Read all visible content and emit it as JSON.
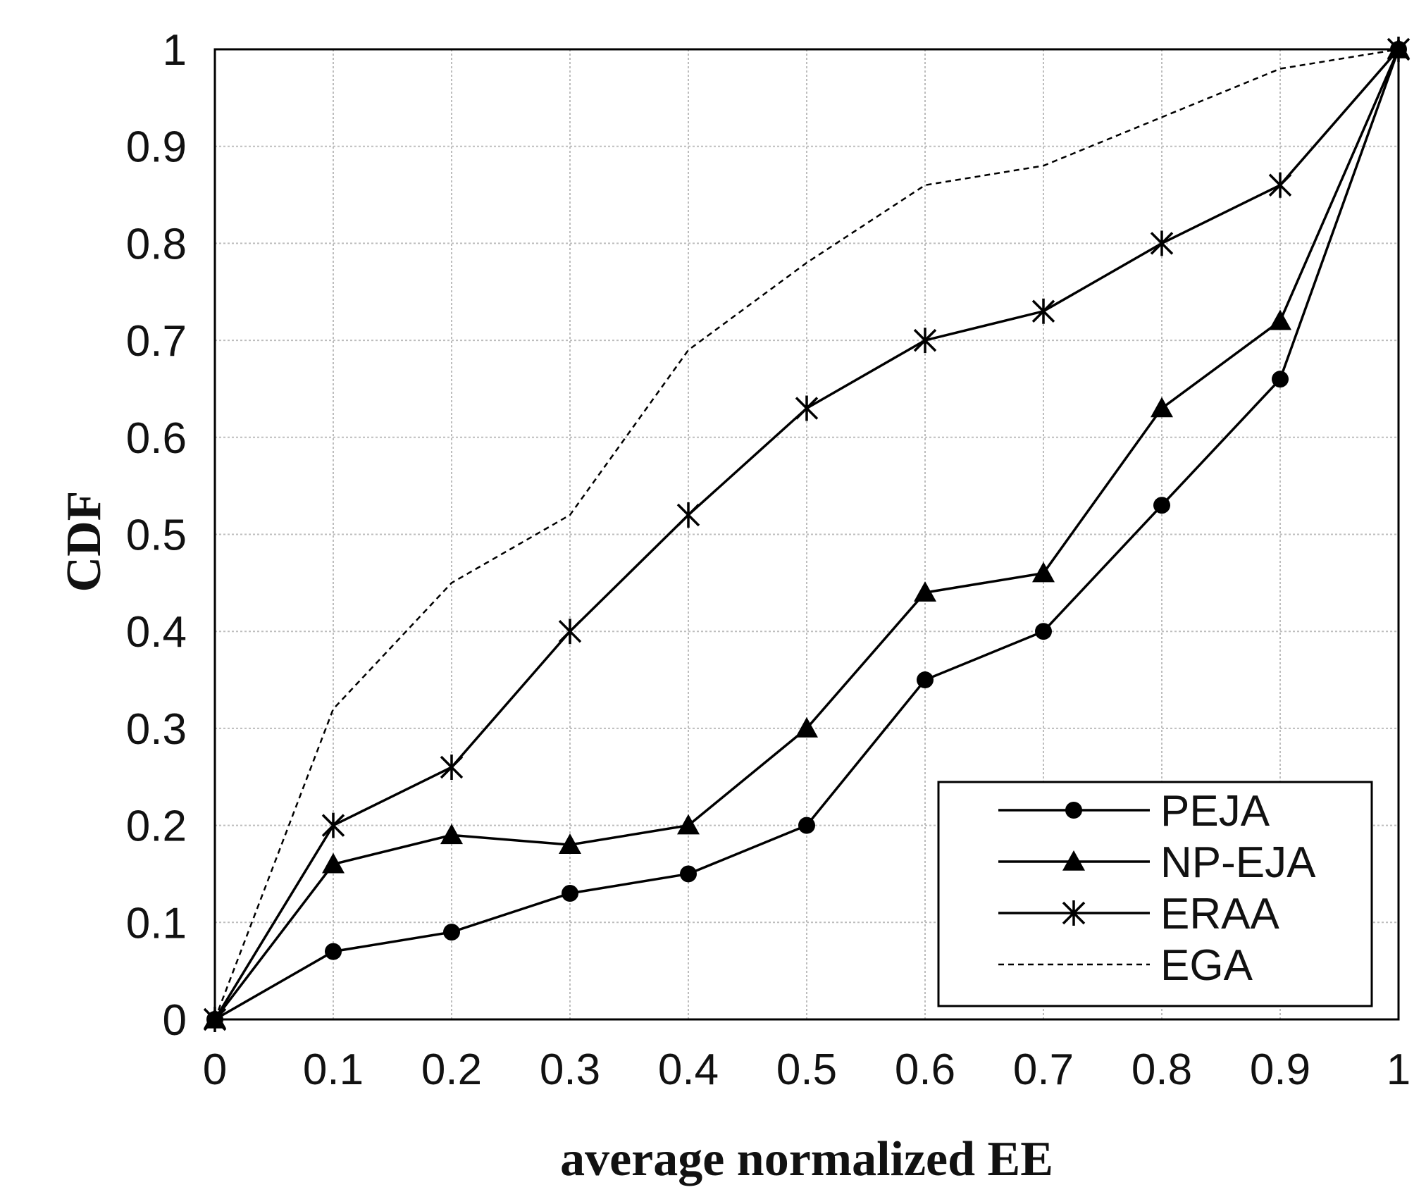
{
  "chart_data": {
    "type": "line",
    "title": "",
    "xlabel": "average normalized EE",
    "ylabel": "CDF",
    "x": [
      0,
      0.1,
      0.2,
      0.3,
      0.4,
      0.5,
      0.6,
      0.7,
      0.8,
      0.9,
      1
    ],
    "xlim": [
      0,
      1
    ],
    "ylim": [
      0,
      1
    ],
    "xticks": [
      "0",
      "0.1",
      "0.2",
      "0.3",
      "0.4",
      "0.5",
      "0.6",
      "0.7",
      "0.8",
      "0.9",
      "1"
    ],
    "yticks": [
      "0",
      "0.1",
      "0.2",
      "0.3",
      "0.4",
      "0.5",
      "0.6",
      "0.7",
      "0.8",
      "0.9",
      "1"
    ],
    "grid": true,
    "legend_position": "bottom-right",
    "series": [
      {
        "name": "PEJA",
        "marker": "circle",
        "line": "solid",
        "values": [
          0,
          0.07,
          0.09,
          0.13,
          0.15,
          0.2,
          0.35,
          0.4,
          0.53,
          0.66,
          1
        ]
      },
      {
        "name": "NP-EJA",
        "marker": "triangle",
        "line": "solid",
        "values": [
          0,
          0.16,
          0.19,
          0.18,
          0.2,
          0.3,
          0.44,
          0.46,
          0.63,
          0.72,
          1
        ]
      },
      {
        "name": "ERAA",
        "marker": "asterisk",
        "line": "solid",
        "values": [
          0,
          0.2,
          0.26,
          0.4,
          0.52,
          0.63,
          0.7,
          0.73,
          0.8,
          0.86,
          1
        ]
      },
      {
        "name": "EGA",
        "marker": "none",
        "line": "dashed",
        "values": [
          0,
          0.32,
          0.45,
          0.52,
          0.69,
          0.78,
          0.86,
          0.88,
          0.93,
          0.98,
          1
        ]
      }
    ]
  }
}
